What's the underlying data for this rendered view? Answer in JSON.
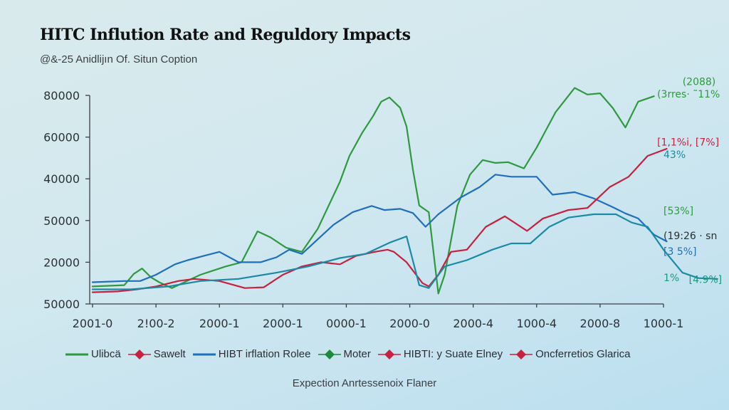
{
  "header": {
    "title": "HITC Inflution Rate and Reguldory Impacts",
    "subtitle": "@&-25 Anidlijın Of. Situn Coption"
  },
  "footer": {
    "caption": "Expection Anrtessenoix Flaner"
  },
  "chart_data": {
    "type": "line",
    "title": "HITC Inflution Rate and Reguldory Impacts",
    "subtitle": "@&-25 Anidlijın Of. Situn Coption",
    "xlabel": "Expection Anrtessenoix Flaner",
    "ylabel": "",
    "x_tick_labels": [
      "2001-0",
      "2!00-2",
      "2000-1",
      "2000-1",
      "0000-1",
      "2000-0",
      "2000-4",
      "1000-4",
      "2000-8",
      "1000-1"
    ],
    "y_tick_labels": [
      "50000",
      "20000",
      "50000",
      "40000",
      "60000",
      "80000"
    ],
    "x_range_tick_index": [
      0,
      9
    ],
    "y_range_tick_index": [
      0,
      5
    ],
    "value_units": "positions expressed in tick-index units: x 0=first tick .. 9=last tick, y 0=bottom tick .. 5=top tick",
    "grid": false,
    "legend_position": "bottom",
    "legend": [
      {
        "label": "Ulibcä",
        "marker": "line",
        "color": "#2e9a3e"
      },
      {
        "label": "Sawelt",
        "marker": "diamond",
        "color": "#c8203f"
      },
      {
        "label": "HIBT irflation Rolee",
        "marker": "line",
        "color": "#1f6fbf"
      },
      {
        "label": "Moter",
        "marker": "diamond",
        "color": "#1e8a3c"
      },
      {
        "label": "HIBTI: y Suate Elney",
        "marker": "diamond",
        "color": "#c8203f"
      },
      {
        "label": "Oncferretios Glarica",
        "marker": "diamond",
        "color": "#c8203f"
      }
    ],
    "series": [
      {
        "name": "Green",
        "color": "#2e9a3e",
        "points": [
          [
            0,
            0.42
          ],
          [
            0.5,
            0.45
          ],
          [
            0.65,
            0.72
          ],
          [
            0.78,
            0.85
          ],
          [
            0.92,
            0.64
          ],
          [
            1.05,
            0.52
          ],
          [
            1.25,
            0.38
          ],
          [
            1.7,
            0.7
          ],
          [
            2.1,
            0.9
          ],
          [
            2.35,
            1.0
          ],
          [
            2.6,
            1.74
          ],
          [
            2.8,
            1.6
          ],
          [
            3.05,
            1.35
          ],
          [
            3.3,
            1.25
          ],
          [
            3.55,
            1.8
          ],
          [
            3.9,
            2.93
          ],
          [
            4.05,
            3.55
          ],
          [
            4.25,
            4.1
          ],
          [
            4.42,
            4.5
          ],
          [
            4.55,
            4.85
          ],
          [
            4.68,
            4.95
          ],
          [
            4.85,
            4.7
          ],
          [
            4.95,
            4.25
          ],
          [
            5.05,
            3.22
          ],
          [
            5.15,
            2.36
          ],
          [
            5.3,
            2.2
          ],
          [
            5.45,
            0.25
          ],
          [
            5.55,
            0.7
          ],
          [
            5.75,
            2.35
          ],
          [
            5.95,
            3.1
          ],
          [
            6.15,
            3.45
          ],
          [
            6.35,
            3.38
          ],
          [
            6.55,
            3.4
          ],
          [
            6.8,
            3.25
          ],
          [
            7.0,
            3.75
          ],
          [
            7.3,
            4.6
          ],
          [
            7.6,
            5.18
          ],
          [
            7.8,
            5.02
          ],
          [
            8.0,
            5.05
          ],
          [
            8.2,
            4.7
          ],
          [
            8.4,
            4.23
          ],
          [
            8.6,
            4.85
          ],
          [
            8.85,
            4.98
          ]
        ]
      },
      {
        "name": "Blue",
        "color": "#1f6fbf",
        "points": [
          [
            0,
            0.52
          ],
          [
            0.5,
            0.55
          ],
          [
            0.75,
            0.55
          ],
          [
            1.0,
            0.7
          ],
          [
            1.3,
            0.95
          ],
          [
            1.5,
            1.05
          ],
          [
            1.75,
            1.15
          ],
          [
            2.0,
            1.25
          ],
          [
            2.3,
            1.0
          ],
          [
            2.65,
            1.0
          ],
          [
            2.9,
            1.12
          ],
          [
            3.1,
            1.3
          ],
          [
            3.3,
            1.2
          ],
          [
            3.55,
            1.55
          ],
          [
            3.8,
            1.9
          ],
          [
            4.1,
            2.2
          ],
          [
            4.4,
            2.35
          ],
          [
            4.6,
            2.25
          ],
          [
            4.85,
            2.28
          ],
          [
            5.05,
            2.18
          ],
          [
            5.25,
            1.85
          ],
          [
            5.45,
            2.15
          ],
          [
            5.8,
            2.55
          ],
          [
            6.1,
            2.8
          ],
          [
            6.35,
            3.1
          ],
          [
            6.6,
            3.05
          ],
          [
            6.8,
            3.05
          ],
          [
            7.0,
            3.05
          ],
          [
            7.25,
            2.62
          ],
          [
            7.6,
            2.68
          ],
          [
            7.9,
            2.53
          ],
          [
            8.2,
            2.32
          ],
          [
            8.4,
            2.17
          ],
          [
            8.6,
            2.05
          ],
          [
            8.85,
            1.66
          ],
          [
            9.05,
            1.5
          ]
        ]
      },
      {
        "name": "Red",
        "color": "#c8203f",
        "points": [
          [
            0,
            0.28
          ],
          [
            0.4,
            0.3
          ],
          [
            0.7,
            0.35
          ],
          [
            1.0,
            0.42
          ],
          [
            1.35,
            0.55
          ],
          [
            1.6,
            0.6
          ],
          [
            2.0,
            0.55
          ],
          [
            2.4,
            0.38
          ],
          [
            2.7,
            0.4
          ],
          [
            3.0,
            0.7
          ],
          [
            3.3,
            0.9
          ],
          [
            3.6,
            1.0
          ],
          [
            3.9,
            0.95
          ],
          [
            4.15,
            1.15
          ],
          [
            4.45,
            1.25
          ],
          [
            4.65,
            1.3
          ],
          [
            4.75,
            1.25
          ],
          [
            4.95,
            1.0
          ],
          [
            5.2,
            0.5
          ],
          [
            5.3,
            0.42
          ],
          [
            5.45,
            0.7
          ],
          [
            5.65,
            1.25
          ],
          [
            5.9,
            1.3
          ],
          [
            6.2,
            1.85
          ],
          [
            6.5,
            2.1
          ],
          [
            6.85,
            1.75
          ],
          [
            7.1,
            2.05
          ],
          [
            7.5,
            2.25
          ],
          [
            7.8,
            2.3
          ],
          [
            8.15,
            2.8
          ],
          [
            8.45,
            3.05
          ],
          [
            8.75,
            3.55
          ],
          [
            9.05,
            3.72
          ]
        ]
      },
      {
        "name": "Teal",
        "color": "#1a8aa5",
        "points": [
          [
            0,
            0.35
          ],
          [
            0.6,
            0.35
          ],
          [
            1.2,
            0.42
          ],
          [
            1.7,
            0.55
          ],
          [
            2.3,
            0.6
          ],
          [
            2.9,
            0.75
          ],
          [
            3.4,
            0.9
          ],
          [
            3.9,
            1.1
          ],
          [
            4.3,
            1.2
          ],
          [
            4.7,
            1.48
          ],
          [
            4.95,
            1.62
          ],
          [
            5.15,
            0.45
          ],
          [
            5.3,
            0.38
          ],
          [
            5.55,
            0.9
          ],
          [
            5.9,
            1.05
          ],
          [
            6.3,
            1.3
          ],
          [
            6.6,
            1.45
          ],
          [
            6.9,
            1.45
          ],
          [
            7.2,
            1.85
          ],
          [
            7.5,
            2.07
          ],
          [
            7.9,
            2.15
          ],
          [
            8.25,
            2.15
          ],
          [
            8.5,
            1.95
          ],
          [
            8.75,
            1.85
          ],
          [
            9.0,
            1.3
          ],
          [
            9.3,
            0.75
          ],
          [
            9.55,
            0.62
          ],
          [
            9.85,
            0.6
          ]
        ]
      }
    ],
    "annotations": [
      {
        "text": "(2088)",
        "color": "#2e9a3e",
        "anchor": [
          9.3,
          5.25
        ]
      },
      {
        "text": "(3rres· ˜11%",
        "color": "#2e9a3e",
        "anchor": [
          8.9,
          4.95
        ]
      },
      {
        "text": "[1,1%i, [7%]",
        "color": "#c8203f",
        "anchor": [
          8.9,
          3.8
        ]
      },
      {
        "text": "43%",
        "color": "#1a8aa5",
        "anchor": [
          9.0,
          3.5
        ]
      },
      {
        "text": "[53%]",
        "color": "#2e9a3e",
        "anchor": [
          9.0,
          2.15
        ]
      },
      {
        "text": "(19:26 · sn",
        "color": "#2b2f33",
        "anchor": [
          9.0,
          1.55
        ]
      },
      {
        "text": "[3 5%]",
        "color": "#1f6fbf",
        "anchor": [
          9.0,
          1.18
        ]
      },
      {
        "text": "1%",
        "color": "#1a9a7a",
        "anchor": [
          9.0,
          0.55
        ]
      },
      {
        "text": "[4.9%]",
        "color": "#1a9a7a",
        "anchor": [
          9.4,
          0.5
        ]
      }
    ]
  }
}
